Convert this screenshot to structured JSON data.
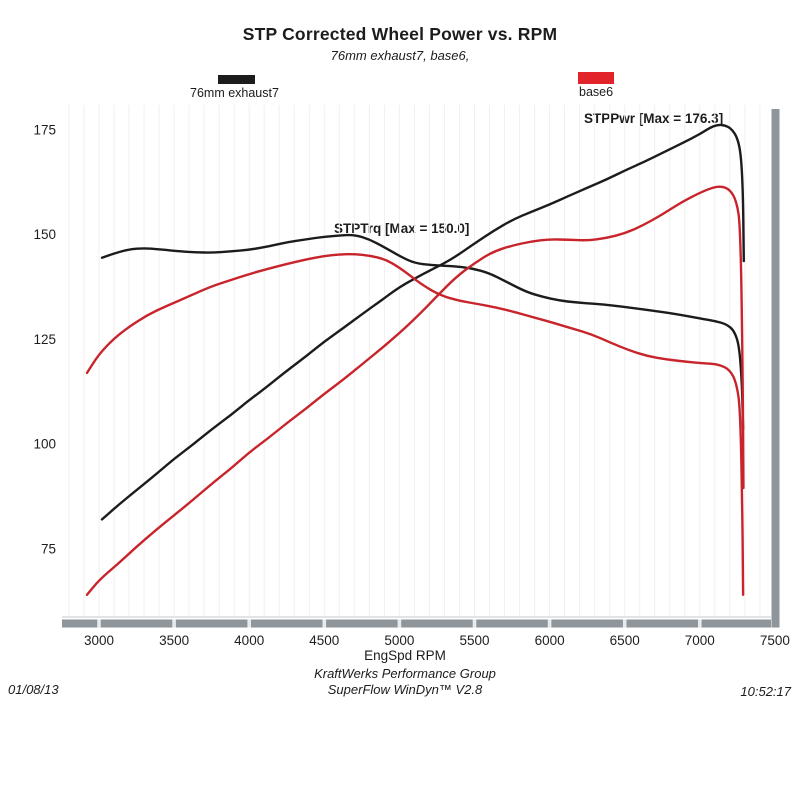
{
  "title": "STP Corrected Wheel Power vs. RPM",
  "subtitle": "76mm exhaust7, base6,",
  "legend": [
    {
      "label": "76mm exhaust7",
      "color": "#1c1c1c"
    },
    {
      "label": "base6",
      "color": "#e2242a"
    }
  ],
  "annotations": {
    "stppwr": "STPPwr [Max = 176.3]",
    "stptrq": "STPTrq [Max = 150.0]"
  },
  "footer": {
    "date": "01/08/13",
    "org": "KraftWerks Performance Group",
    "software": "SuperFlow WinDyn™ V2.8",
    "time": "10:52:17"
  },
  "chart_data": {
    "type": "line",
    "title": "STP Corrected Wheel Power vs. RPM",
    "xlabel": "EngSpd RPM",
    "ylabel": "",
    "x_ticks": [
      3000,
      3500,
      4000,
      4500,
      5000,
      5500,
      6000,
      6500,
      7000,
      7500
    ],
    "y_ticks": [
      75,
      100,
      125,
      150,
      175
    ],
    "xlim": [
      2750,
      7500
    ],
    "ylim": [
      58,
      181
    ],
    "grid": "minor vertical lines every 100 RPM, very light",
    "legend_position": "top, swatches above plot (black left, red right)",
    "colors": {
      "curve_black": "#1c1c1c",
      "curve_red": "#c8242b",
      "axis_bar": "#8f969b",
      "axis_bar_gap": "#e8eaeb",
      "baseline": "#d7dadc",
      "grid": "#f2efee"
    },
    "series": [
      {
        "key": "series-76mm-exhaust7-stppwr",
        "name": "76mm exhaust7 STPPwr",
        "color": "#1c1c1c",
        "max": 176.3,
        "points": [
          [
            3020,
            82
          ],
          [
            3130,
            85.5
          ],
          [
            3250,
            89
          ],
          [
            3380,
            92.8
          ],
          [
            3500,
            96.5
          ],
          [
            3630,
            100
          ],
          [
            3750,
            103.5
          ],
          [
            3880,
            107
          ],
          [
            4000,
            110.5
          ],
          [
            4130,
            114
          ],
          [
            4250,
            117.5
          ],
          [
            4380,
            121
          ],
          [
            4500,
            124.5
          ],
          [
            4630,
            127.8
          ],
          [
            4750,
            131
          ],
          [
            4880,
            134.3
          ],
          [
            5000,
            137.5
          ],
          [
            5150,
            140.5
          ],
          [
            5300,
            143.2
          ],
          [
            5400,
            145.4
          ],
          [
            5500,
            147.9
          ],
          [
            5630,
            151
          ],
          [
            5750,
            153.5
          ],
          [
            5880,
            155.5
          ],
          [
            6000,
            157.2
          ],
          [
            6130,
            159.3
          ],
          [
            6250,
            161.2
          ],
          [
            6380,
            163.2
          ],
          [
            6500,
            165.3
          ],
          [
            6630,
            167.4
          ],
          [
            6750,
            169.5
          ],
          [
            6880,
            171.8
          ],
          [
            7000,
            174
          ],
          [
            7060,
            175.4
          ],
          [
            7120,
            176.3
          ],
          [
            7170,
            176.1
          ],
          [
            7210,
            175.3
          ],
          [
            7250,
            173.2
          ],
          [
            7275,
            169
          ],
          [
            7288,
            159
          ],
          [
            7293,
            143.7
          ]
        ]
      },
      {
        "key": "series-76mm-exhaust7-stptrq",
        "name": "76mm exhaust7 STPTrq",
        "color": "#1c1c1c",
        "max": 150.0,
        "points": [
          [
            3020,
            144.5
          ],
          [
            3100,
            145.5
          ],
          [
            3200,
            146.5
          ],
          [
            3300,
            146.8
          ],
          [
            3400,
            146.5
          ],
          [
            3550,
            146
          ],
          [
            3650,
            145.8
          ],
          [
            3750,
            145.7
          ],
          [
            3880,
            146
          ],
          [
            4000,
            146.4
          ],
          [
            4130,
            147.2
          ],
          [
            4250,
            148.2
          ],
          [
            4380,
            148.9
          ],
          [
            4500,
            149.5
          ],
          [
            4600,
            149.8
          ],
          [
            4700,
            150
          ],
          [
            4800,
            148.9
          ],
          [
            4900,
            147
          ],
          [
            5000,
            144.9
          ],
          [
            5100,
            143.2
          ],
          [
            5220,
            142.7
          ],
          [
            5350,
            142.5
          ],
          [
            5480,
            142
          ],
          [
            5600,
            140.8
          ],
          [
            5720,
            138.6
          ],
          [
            5840,
            136.4
          ],
          [
            5950,
            135.2
          ],
          [
            6060,
            134.3
          ],
          [
            6180,
            133.8
          ],
          [
            6300,
            133.5
          ],
          [
            6420,
            133.1
          ],
          [
            6550,
            132.5
          ],
          [
            6700,
            131.8
          ],
          [
            6850,
            131
          ],
          [
            7000,
            130
          ],
          [
            7100,
            129.4
          ],
          [
            7180,
            128.6
          ],
          [
            7230,
            127
          ],
          [
            7262,
            123.5
          ],
          [
            7280,
            115
          ],
          [
            7288,
            103.5
          ]
        ]
      },
      {
        "key": "series-base6-stppwr",
        "name": "base6 STPPwr",
        "color": "#c8242b",
        "max": 161.6,
        "points": [
          [
            2920,
            64
          ],
          [
            3000,
            67.5
          ],
          [
            3120,
            71.2
          ],
          [
            3250,
            75.5
          ],
          [
            3380,
            79.5
          ],
          [
            3500,
            83
          ],
          [
            3630,
            86.8
          ],
          [
            3750,
            90.5
          ],
          [
            3880,
            94.2
          ],
          [
            4000,
            98
          ],
          [
            4130,
            101.5
          ],
          [
            4250,
            105
          ],
          [
            4380,
            108.5
          ],
          [
            4500,
            112
          ],
          [
            4630,
            115.5
          ],
          [
            4750,
            119
          ],
          [
            4880,
            122.8
          ],
          [
            5000,
            126.5
          ],
          [
            5120,
            130.5
          ],
          [
            5250,
            135.3
          ],
          [
            5380,
            140
          ],
          [
            5500,
            143.2
          ],
          [
            5620,
            145.9
          ],
          [
            5750,
            147.4
          ],
          [
            5880,
            148.4
          ],
          [
            6000,
            148.9
          ],
          [
            6120,
            148.8
          ],
          [
            6250,
            148.6
          ],
          [
            6380,
            149.2
          ],
          [
            6500,
            150.3
          ],
          [
            6620,
            152.2
          ],
          [
            6750,
            154.8
          ],
          [
            6880,
            157.8
          ],
          [
            7000,
            160
          ],
          [
            7080,
            161.2
          ],
          [
            7140,
            161.6
          ],
          [
            7200,
            160.8
          ],
          [
            7245,
            158
          ],
          [
            7270,
            152
          ],
          [
            7285,
            120
          ],
          [
            7290,
            89.5
          ]
        ]
      },
      {
        "key": "series-base6-stptrq",
        "name": "base6 STPTrq",
        "color": "#c8242b",
        "max": 145.4,
        "points": [
          [
            2920,
            117
          ],
          [
            3000,
            121.5
          ],
          [
            3100,
            125.2
          ],
          [
            3200,
            128
          ],
          [
            3320,
            130.8
          ],
          [
            3450,
            133
          ],
          [
            3600,
            135.3
          ],
          [
            3750,
            137.7
          ],
          [
            3880,
            139.2
          ],
          [
            4000,
            140.6
          ],
          [
            4130,
            141.9
          ],
          [
            4250,
            143
          ],
          [
            4380,
            144.1
          ],
          [
            4500,
            144.9
          ],
          [
            4600,
            145.3
          ],
          [
            4700,
            145.4
          ],
          [
            4800,
            145
          ],
          [
            4900,
            144.2
          ],
          [
            5000,
            142.2
          ],
          [
            5150,
            138
          ],
          [
            5280,
            135.4
          ],
          [
            5400,
            134.2
          ],
          [
            5530,
            133.4
          ],
          [
            5650,
            132.6
          ],
          [
            5780,
            131.4
          ],
          [
            5900,
            130.2
          ],
          [
            6030,
            128.9
          ],
          [
            6150,
            127.6
          ],
          [
            6280,
            126.2
          ],
          [
            6400,
            124.3
          ],
          [
            6530,
            122.4
          ],
          [
            6650,
            121
          ],
          [
            6780,
            120.2
          ],
          [
            6900,
            119.7
          ],
          [
            7020,
            119.3
          ],
          [
            7120,
            119.1
          ],
          [
            7200,
            117.8
          ],
          [
            7245,
            114.5
          ],
          [
            7270,
            108
          ],
          [
            7285,
            80
          ],
          [
            7288,
            64
          ]
        ]
      }
    ]
  }
}
